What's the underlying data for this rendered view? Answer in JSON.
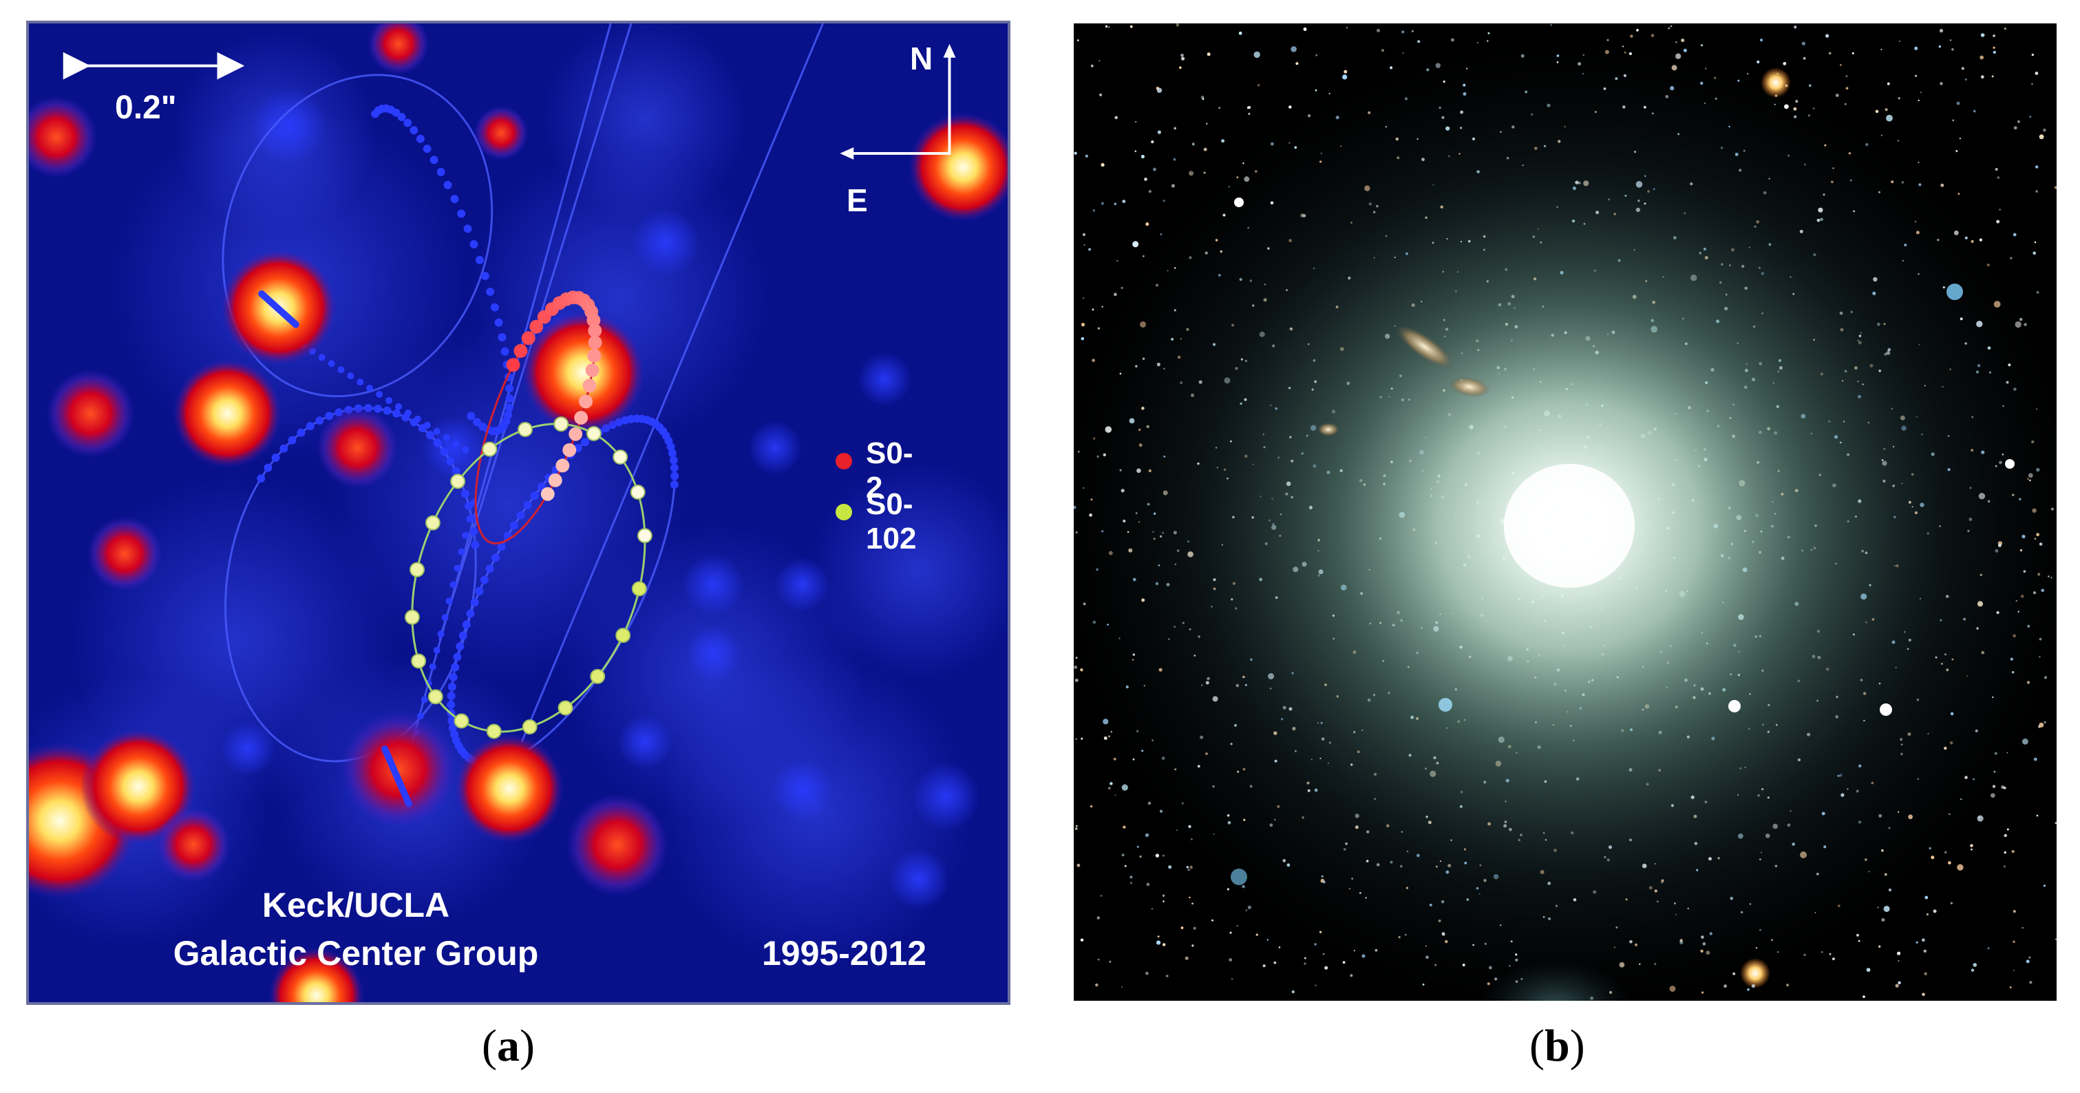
{
  "panel_a": {
    "scale_bar_label": "0.2\"",
    "compass": {
      "north": "N",
      "east": "E"
    },
    "legend": [
      {
        "label": "S0-2",
        "color": "#e8202a"
      },
      {
        "label": "S0-102",
        "color": "#c8e640"
      }
    ],
    "credit_line1": "Keck/UCLA",
    "credit_line2": "Galactic Center Group",
    "date_range": "1995-2012",
    "background_color": "#08108a"
  },
  "panel_b": {
    "background_color": "#000000",
    "galaxy_glow_color": "#dff4ea"
  },
  "captions": {
    "a": {
      "open": "(",
      "letter": "a",
      "close": ")"
    },
    "b": {
      "open": "(",
      "letter": "b",
      "close": ")"
    }
  }
}
